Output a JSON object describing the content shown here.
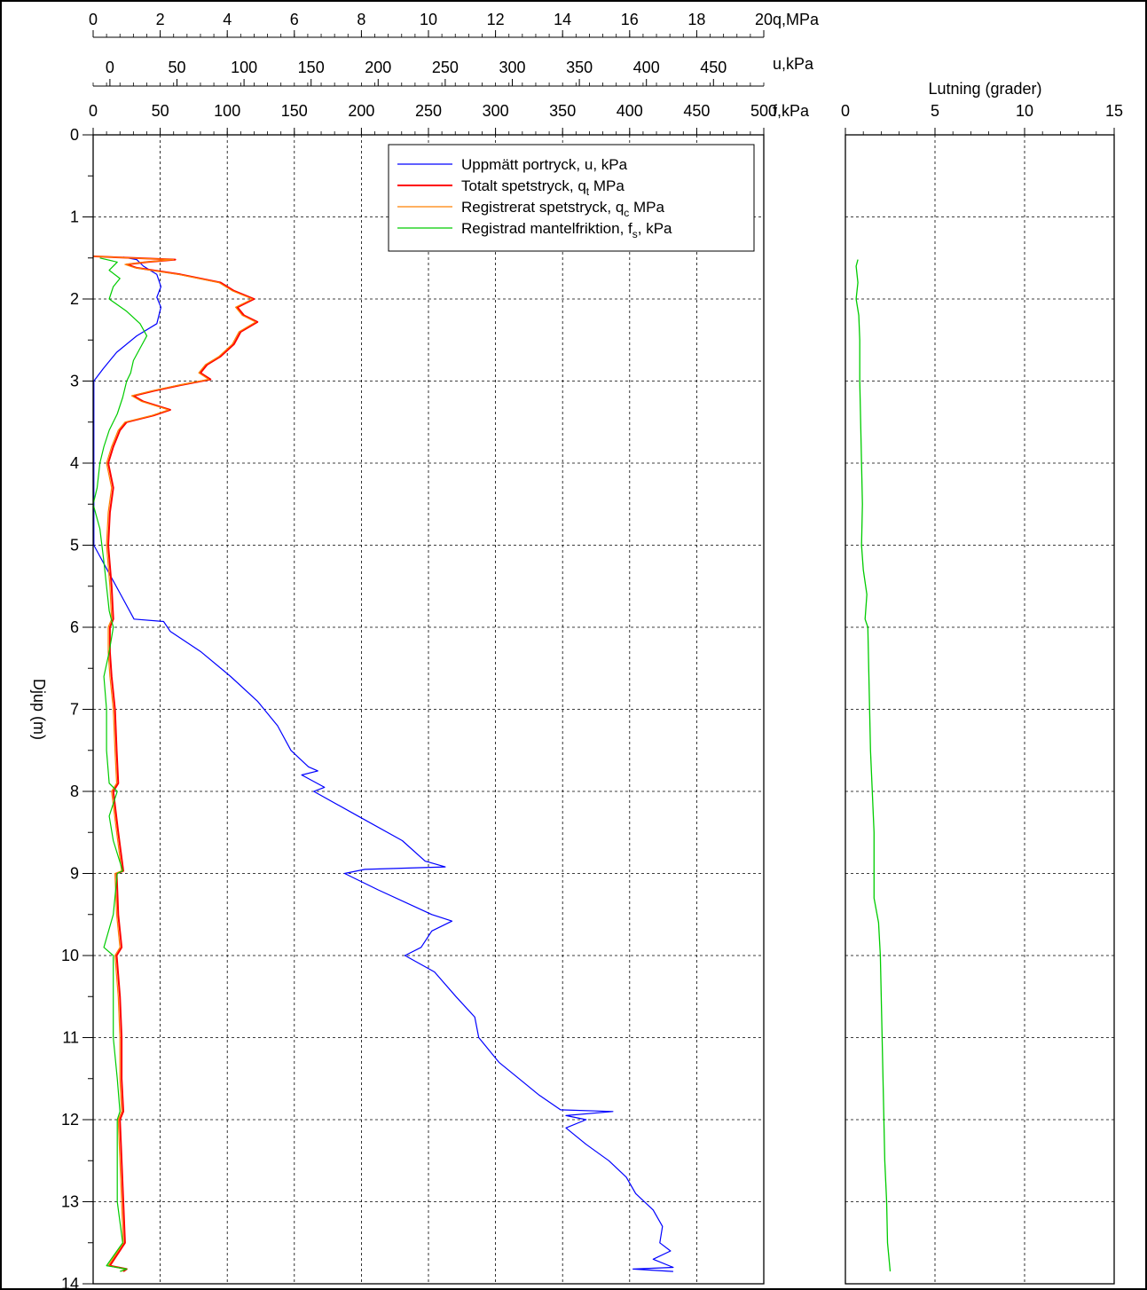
{
  "chart_data": {
    "type": "line",
    "y_axis": {
      "label": "Djup  (m)",
      "range": [
        0,
        14
      ],
      "ticks": [
        0,
        1,
        2,
        3,
        4,
        5,
        6,
        7,
        8,
        9,
        10,
        11,
        12,
        13,
        14
      ],
      "inverted": true,
      "grid": true
    },
    "top_axes": [
      {
        "id": "q",
        "unit": "q,MPa",
        "range": [
          0,
          20
        ],
        "ticks": [
          0,
          2,
          4,
          6,
          8,
          10,
          12,
          14,
          16,
          18,
          20
        ]
      },
      {
        "id": "u",
        "unit": "u,kPa",
        "range": [
          -12.5,
          487.5
        ],
        "ticks": [
          0,
          50,
          100,
          150,
          200,
          250,
          300,
          350,
          400,
          450
        ]
      },
      {
        "id": "f",
        "unit": "f,kPa",
        "range": [
          0,
          500
        ],
        "ticks": [
          0,
          50,
          100,
          150,
          200,
          250,
          300,
          350,
          400,
          450,
          500
        ]
      }
    ],
    "legend": {
      "placement": "top-right",
      "entries": [
        {
          "key": "u",
          "text": "Uppmätt portryck, u, kPa",
          "sub": "",
          "tail": "",
          "color": "#0000ff"
        },
        {
          "key": "qt",
          "text": "Totalt spetstryck, q",
          "sub": "t",
          "tail": "  MPa",
          "color": "#ff0000"
        },
        {
          "key": "qc",
          "text": "Registrerat spetstryck, q",
          "sub": "c",
          "tail": "  MPa",
          "color": "#ff8000"
        },
        {
          "key": "fs",
          "text": "Registrad mantelfriktion, f",
          "sub": "s",
          "tail": ", kPa",
          "color": "#00cc00"
        }
      ]
    },
    "series": [
      {
        "key": "u",
        "axis": "u",
        "color": "#0000ff",
        "points": [
          [
            1.49,
            10
          ],
          [
            1.52,
            20
          ],
          [
            1.6,
            25
          ],
          [
            1.7,
            35
          ],
          [
            1.85,
            38
          ],
          [
            1.98,
            35
          ],
          [
            2.1,
            38
          ],
          [
            2.3,
            35
          ],
          [
            2.45,
            20
          ],
          [
            2.65,
            5
          ],
          [
            2.85,
            -5
          ],
          [
            3.0,
            -12
          ],
          [
            5.0,
            -12
          ],
          [
            5.3,
            -2
          ],
          [
            5.6,
            8
          ],
          [
            5.9,
            18
          ],
          [
            5.93,
            40
          ],
          [
            6.05,
            45
          ],
          [
            6.3,
            68
          ],
          [
            6.6,
            90
          ],
          [
            6.9,
            110
          ],
          [
            7.2,
            125
          ],
          [
            7.5,
            135
          ],
          [
            7.7,
            148
          ],
          [
            7.75,
            155
          ],
          [
            7.8,
            143
          ],
          [
            7.95,
            160
          ],
          [
            8.0,
            152
          ],
          [
            8.3,
            185
          ],
          [
            8.6,
            218
          ],
          [
            8.85,
            235
          ],
          [
            8.92,
            250
          ],
          [
            8.95,
            190
          ],
          [
            9.0,
            175
          ],
          [
            9.2,
            200
          ],
          [
            9.5,
            240
          ],
          [
            9.58,
            255
          ],
          [
            9.7,
            240
          ],
          [
            9.9,
            232
          ],
          [
            10.0,
            220
          ],
          [
            10.2,
            242
          ],
          [
            10.5,
            258
          ],
          [
            10.75,
            272
          ],
          [
            11.0,
            275
          ],
          [
            11.3,
            290
          ],
          [
            11.5,
            305
          ],
          [
            11.7,
            320
          ],
          [
            11.88,
            336
          ],
          [
            11.9,
            375
          ],
          [
            11.95,
            340
          ],
          [
            12.0,
            355
          ],
          [
            12.1,
            340
          ],
          [
            12.3,
            355
          ],
          [
            12.5,
            372
          ],
          [
            12.7,
            385
          ],
          [
            12.9,
            392
          ],
          [
            13.1,
            405
          ],
          [
            13.3,
            412
          ],
          [
            13.5,
            410
          ],
          [
            13.6,
            418
          ],
          [
            13.7,
            405
          ],
          [
            13.8,
            420
          ],
          [
            13.82,
            390
          ],
          [
            13.85,
            420
          ]
        ]
      },
      {
        "key": "qt",
        "axis": "q",
        "color": "#ff0000",
        "points": [
          [
            1.48,
            0
          ],
          [
            1.5,
            1.2
          ],
          [
            1.52,
            2.45
          ],
          [
            1.55,
            1.6
          ],
          [
            1.58,
            1.0
          ],
          [
            1.62,
            1.3
          ],
          [
            1.7,
            2.6
          ],
          [
            1.8,
            3.8
          ],
          [
            1.9,
            4.2
          ],
          [
            2.0,
            4.8
          ],
          [
            2.1,
            4.3
          ],
          [
            2.2,
            4.5
          ],
          [
            2.28,
            4.9
          ],
          [
            2.4,
            4.4
          ],
          [
            2.55,
            4.2
          ],
          [
            2.7,
            3.8
          ],
          [
            2.8,
            3.4
          ],
          [
            2.9,
            3.2
          ],
          [
            2.98,
            3.5
          ],
          [
            3.05,
            2.6
          ],
          [
            3.12,
            1.8
          ],
          [
            3.18,
            1.2
          ],
          [
            3.25,
            1.5
          ],
          [
            3.35,
            2.3
          ],
          [
            3.42,
            1.8
          ],
          [
            3.5,
            1.0
          ],
          [
            3.6,
            0.8
          ],
          [
            3.8,
            0.6
          ],
          [
            4.0,
            0.45
          ],
          [
            4.3,
            0.6
          ],
          [
            4.6,
            0.5
          ],
          [
            5.0,
            0.45
          ],
          [
            5.5,
            0.55
          ],
          [
            5.9,
            0.6
          ],
          [
            6.0,
            0.5
          ],
          [
            6.3,
            0.5
          ],
          [
            6.6,
            0.55
          ],
          [
            7.0,
            0.65
          ],
          [
            7.5,
            0.7
          ],
          [
            7.9,
            0.75
          ],
          [
            8.0,
            0.6
          ],
          [
            8.5,
            0.75
          ],
          [
            8.97,
            0.9
          ],
          [
            9.0,
            0.7
          ],
          [
            9.5,
            0.75
          ],
          [
            9.9,
            0.85
          ],
          [
            10.0,
            0.7
          ],
          [
            10.5,
            0.8
          ],
          [
            11.0,
            0.85
          ],
          [
            11.5,
            0.85
          ],
          [
            11.9,
            0.9
          ],
          [
            12.0,
            0.8
          ],
          [
            12.5,
            0.85
          ],
          [
            13.0,
            0.9
          ],
          [
            13.5,
            0.95
          ],
          [
            13.78,
            0.5
          ],
          [
            13.82,
            1.0
          ],
          [
            13.85,
            0.9
          ]
        ]
      },
      {
        "key": "qc",
        "axis": "q",
        "color": "#ff8000",
        "points": [
          [
            1.48,
            0
          ],
          [
            1.5,
            1.15
          ],
          [
            1.52,
            2.4
          ],
          [
            1.55,
            1.55
          ],
          [
            1.58,
            0.95
          ],
          [
            1.62,
            1.25
          ],
          [
            1.7,
            2.55
          ],
          [
            1.8,
            3.75
          ],
          [
            1.9,
            4.15
          ],
          [
            2.0,
            4.75
          ],
          [
            2.1,
            4.25
          ],
          [
            2.2,
            4.45
          ],
          [
            2.28,
            4.85
          ],
          [
            2.4,
            4.35
          ],
          [
            2.55,
            4.15
          ],
          [
            2.7,
            3.75
          ],
          [
            2.8,
            3.35
          ],
          [
            2.9,
            3.15
          ],
          [
            2.98,
            3.45
          ],
          [
            3.05,
            2.55
          ],
          [
            3.12,
            1.75
          ],
          [
            3.18,
            1.15
          ],
          [
            3.25,
            1.45
          ],
          [
            3.35,
            2.25
          ],
          [
            3.42,
            1.75
          ],
          [
            3.5,
            0.95
          ],
          [
            3.6,
            0.75
          ],
          [
            3.8,
            0.55
          ],
          [
            4.0,
            0.4
          ],
          [
            4.3,
            0.55
          ],
          [
            4.6,
            0.45
          ],
          [
            5.0,
            0.4
          ],
          [
            5.5,
            0.5
          ],
          [
            5.9,
            0.55
          ],
          [
            6.0,
            0.45
          ],
          [
            6.3,
            0.45
          ],
          [
            6.6,
            0.5
          ],
          [
            7.0,
            0.6
          ],
          [
            7.5,
            0.65
          ],
          [
            7.9,
            0.7
          ],
          [
            8.0,
            0.55
          ],
          [
            8.5,
            0.7
          ],
          [
            8.97,
            0.85
          ],
          [
            9.0,
            0.65
          ],
          [
            9.5,
            0.7
          ],
          [
            9.9,
            0.8
          ],
          [
            10.0,
            0.65
          ],
          [
            10.5,
            0.75
          ],
          [
            11.0,
            0.8
          ],
          [
            11.5,
            0.8
          ],
          [
            11.9,
            0.85
          ],
          [
            12.0,
            0.75
          ],
          [
            12.5,
            0.8
          ],
          [
            13.0,
            0.85
          ],
          [
            13.5,
            0.9
          ],
          [
            13.78,
            0.45
          ],
          [
            13.82,
            0.95
          ],
          [
            13.85,
            0.85
          ]
        ]
      },
      {
        "key": "fs",
        "axis": "f",
        "color": "#00cc00",
        "points": [
          [
            1.5,
            5
          ],
          [
            1.55,
            18
          ],
          [
            1.65,
            12
          ],
          [
            1.75,
            20
          ],
          [
            1.85,
            15
          ],
          [
            2.0,
            12
          ],
          [
            2.15,
            25
          ],
          [
            2.3,
            35
          ],
          [
            2.45,
            40
          ],
          [
            2.6,
            35
          ],
          [
            2.75,
            30
          ],
          [
            2.9,
            28
          ],
          [
            3.0,
            25
          ],
          [
            3.2,
            22
          ],
          [
            3.4,
            18
          ],
          [
            3.6,
            12
          ],
          [
            3.8,
            8
          ],
          [
            4.0,
            5
          ],
          [
            4.3,
            3
          ],
          [
            4.5,
            0
          ],
          [
            4.8,
            5
          ],
          [
            5.2,
            8
          ],
          [
            5.5,
            10
          ],
          [
            5.8,
            12
          ],
          [
            6.0,
            15
          ],
          [
            6.3,
            12
          ],
          [
            6.6,
            8
          ],
          [
            7.0,
            10
          ],
          [
            7.5,
            10
          ],
          [
            7.9,
            12
          ],
          [
            8.0,
            18
          ],
          [
            8.3,
            12
          ],
          [
            8.6,
            15
          ],
          [
            8.97,
            22
          ],
          [
            9.0,
            18
          ],
          [
            9.5,
            15
          ],
          [
            9.9,
            8
          ],
          [
            10.0,
            15
          ],
          [
            10.5,
            15
          ],
          [
            11.0,
            15
          ],
          [
            11.5,
            18
          ],
          [
            11.9,
            20
          ],
          [
            12.0,
            18
          ],
          [
            12.5,
            18
          ],
          [
            13.0,
            18
          ],
          [
            13.5,
            22
          ],
          [
            13.78,
            10
          ],
          [
            13.82,
            25
          ],
          [
            13.85,
            20
          ]
        ]
      }
    ],
    "inclination": {
      "title": "Lutning (grader)",
      "range": [
        0,
        15
      ],
      "ticks": [
        0,
        5,
        10,
        15
      ],
      "series": {
        "name": "Lutning",
        "color": "#00cc00",
        "points": [
          [
            1.52,
            0.7
          ],
          [
            1.6,
            0.6
          ],
          [
            1.8,
            0.7
          ],
          [
            2.0,
            0.6
          ],
          [
            2.2,
            0.75
          ],
          [
            2.5,
            0.8
          ],
          [
            3.0,
            0.8
          ],
          [
            3.5,
            0.85
          ],
          [
            4.0,
            0.9
          ],
          [
            4.5,
            0.95
          ],
          [
            5.0,
            0.9
          ],
          [
            5.3,
            1.0
          ],
          [
            5.6,
            1.2
          ],
          [
            5.9,
            1.1
          ],
          [
            6.0,
            1.25
          ],
          [
            6.5,
            1.3
          ],
          [
            7.0,
            1.35
          ],
          [
            7.5,
            1.4
          ],
          [
            8.0,
            1.5
          ],
          [
            8.5,
            1.6
          ],
          [
            9.0,
            1.6
          ],
          [
            9.3,
            1.6
          ],
          [
            9.6,
            1.85
          ],
          [
            10.0,
            1.95
          ],
          [
            10.5,
            2.0
          ],
          [
            11.0,
            2.05
          ],
          [
            11.5,
            2.1
          ],
          [
            12.0,
            2.15
          ],
          [
            12.5,
            2.2
          ],
          [
            13.0,
            2.3
          ],
          [
            13.5,
            2.35
          ],
          [
            13.85,
            2.5
          ]
        ]
      }
    }
  }
}
